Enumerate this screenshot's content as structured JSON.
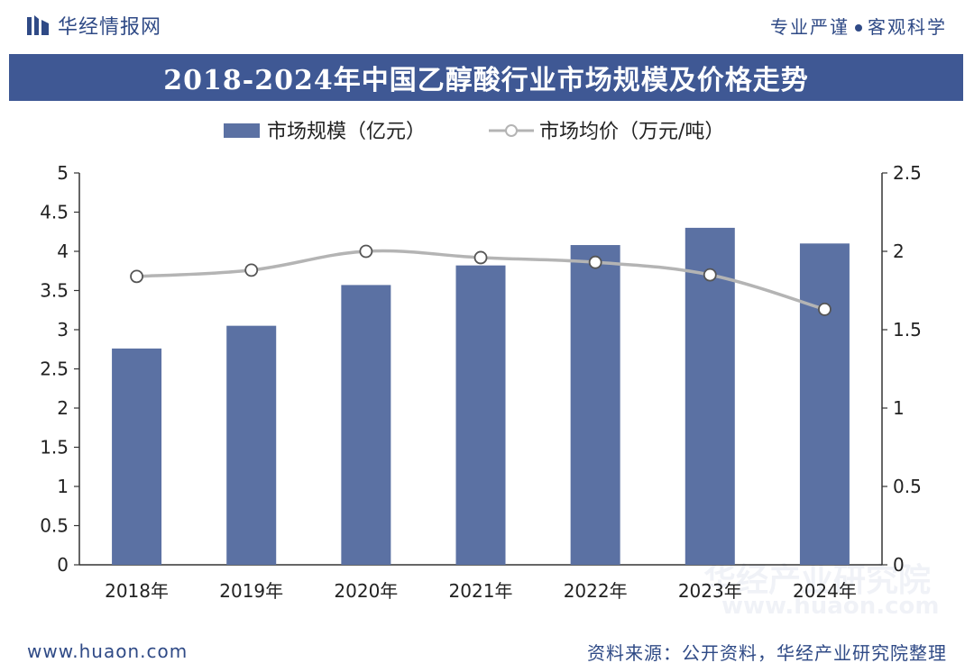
{
  "header": {
    "brand_name": "华经情报网",
    "slogan_left": "专业严谨",
    "slogan_right": "客观科学"
  },
  "footer": {
    "url": "www.huaon.com",
    "source": "资料来源：公开资料，华经产业研究院整理"
  },
  "watermarks": [
    "华经产业研究院",
    "www.huaon.com"
  ],
  "colors": {
    "bar": "#5b71a3",
    "line": "#b4b4b4",
    "marker_fill": "#ffffff",
    "title_bg": "#3f5894",
    "brand": "#2f4a86"
  },
  "chart_data": {
    "type": "bar",
    "title": "2018-2024年中国乙醇酸行业市场规模及价格走势",
    "categories": [
      "2018年",
      "2019年",
      "2020年",
      "2021年",
      "2022年",
      "2023年",
      "2024年"
    ],
    "series": [
      {
        "name": "市场规模（亿元）",
        "type": "bar",
        "axis": "left",
        "values": [
          2.76,
          3.05,
          3.57,
          3.82,
          4.08,
          4.3,
          4.1
        ]
      },
      {
        "name": "市场均价（万元/吨）",
        "type": "line",
        "axis": "right",
        "values": [
          1.84,
          1.88,
          2.0,
          1.96,
          1.93,
          1.85,
          1.63
        ]
      }
    ],
    "y_left": {
      "min": 0,
      "max": 5,
      "step": 0.5,
      "ticks": [
        "0",
        "0.5",
        "1",
        "1.5",
        "2",
        "2.5",
        "3",
        "3.5",
        "4",
        "4.5",
        "5"
      ]
    },
    "y_right": {
      "min": 0,
      "max": 2.5,
      "step": 0.5,
      "ticks": [
        "0",
        "0.5",
        "1",
        "1.5",
        "2",
        "2.5"
      ]
    },
    "grid": false,
    "legend": "top-center"
  }
}
